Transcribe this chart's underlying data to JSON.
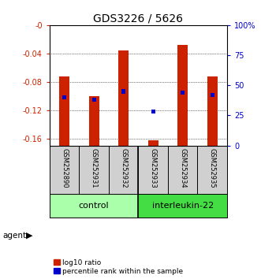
{
  "title": "GDS3226 / 5626",
  "samples": [
    "GSM252890",
    "GSM252931",
    "GSM252932",
    "GSM252933",
    "GSM252934",
    "GSM252935"
  ],
  "log10_ratio": [
    -0.072,
    -0.1,
    -0.036,
    -0.163,
    -0.028,
    -0.072
  ],
  "percentile_rank": [
    40,
    38,
    45,
    28,
    44,
    42
  ],
  "bar_color": "#CC2200",
  "pct_color": "#0000CC",
  "ylim_left": [
    -0.17,
    0.0
  ],
  "ylim_right": [
    0,
    100
  ],
  "yticks_left": [
    -0.16,
    -0.12,
    -0.08,
    -0.04,
    0.0
  ],
  "yticks_right": [
    0,
    25,
    50,
    75,
    100
  ],
  "ytick_labels_left": [
    "-0.16",
    "-0.12",
    "-0.08",
    "-0.04",
    "-0"
  ],
  "ytick_labels_right": [
    "0",
    "25",
    "50",
    "75",
    "100%"
  ],
  "background_color": "#ffffff",
  "title_fontsize": 10,
  "tick_fontsize": 7,
  "sample_fontsize": 6,
  "group_fontsize": 8,
  "legend_fontsize": 6.5,
  "ctrl_color": "#AAFFAA",
  "il22_color": "#44DD44",
  "legend_items": [
    {
      "label": "log10 ratio",
      "color": "#CC2200"
    },
    {
      "label": "percentile rank within the sample",
      "color": "#0000CC"
    }
  ]
}
